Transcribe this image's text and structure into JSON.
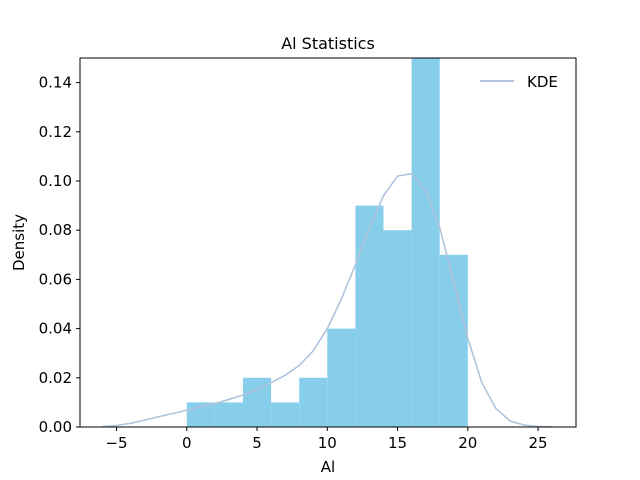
{
  "chart_data": {
    "type": "bar",
    "title": "Al Statistics",
    "xlabel": "Al",
    "ylabel": "Density",
    "xlim": [
      -7.6,
      27.7
    ],
    "ylim": [
      0,
      0.15
    ],
    "x_ticks": [
      -5,
      0,
      5,
      10,
      15,
      20,
      25
    ],
    "x_tick_labels": [
      "−5",
      "0",
      "5",
      "10",
      "15",
      "20",
      "25"
    ],
    "y_ticks": [
      0,
      0.02,
      0.04,
      0.06,
      0.08,
      0.1,
      0.12,
      0.14
    ],
    "y_tick_labels": [
      "0.00",
      "0.02",
      "0.04",
      "0.06",
      "0.08",
      "0.10",
      "0.12",
      "0.14"
    ],
    "grid": false,
    "legend_position": "top-right",
    "colors": {
      "bars": "#87ceeb",
      "kde": "#b0c4de",
      "axes": "#000000"
    },
    "histogram": {
      "bin_edges": [
        0,
        2,
        4,
        6,
        8,
        10,
        12,
        14,
        16,
        18,
        20
      ],
      "values": [
        0.01,
        0.01,
        0.02,
        0.01,
        0.02,
        0.04,
        0.09,
        0.08,
        0.15,
        0.07
      ]
    },
    "series": [
      {
        "name": "KDE",
        "x": [
          -6,
          -5,
          -4,
          -3,
          -2,
          -1,
          0,
          1,
          2,
          3,
          4,
          5,
          6,
          7,
          8,
          9,
          10,
          11,
          12,
          13,
          14,
          15,
          16,
          17,
          18,
          19,
          20,
          21,
          22,
          23,
          24,
          25,
          26
        ],
        "y": [
          0.0002,
          0.0006,
          0.0015,
          0.0028,
          0.0042,
          0.0055,
          0.0068,
          0.0082,
          0.0095,
          0.0112,
          0.013,
          0.0152,
          0.018,
          0.021,
          0.025,
          0.031,
          0.04,
          0.052,
          0.066,
          0.081,
          0.094,
          0.102,
          0.103,
          0.096,
          0.081,
          0.059,
          0.036,
          0.018,
          0.0075,
          0.0025,
          0.0008,
          0.0002,
          5e-05
        ]
      }
    ]
  }
}
